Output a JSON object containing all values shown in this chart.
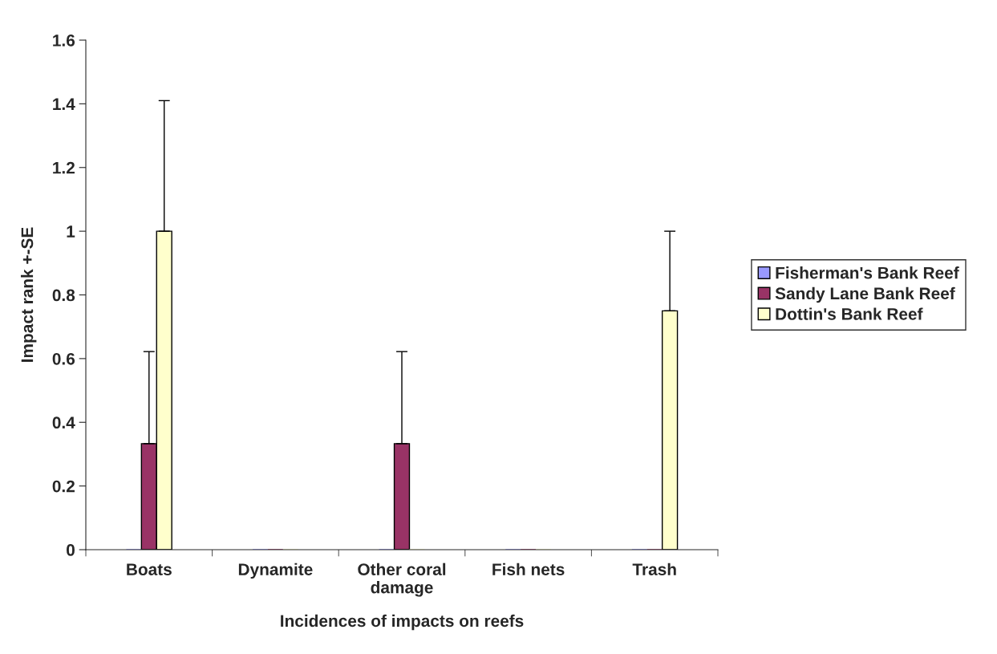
{
  "chart_data": {
    "type": "bar",
    "xlabel": "Incidences of impacts on reefs",
    "ylabel": "Impact rank +-SE",
    "categories": [
      "Boats",
      "Dynamite",
      "Other coral\ndamage",
      "Fish nets",
      "Trash"
    ],
    "series": [
      {
        "name": "Fisherman's Bank Reef",
        "color": "#9999ff",
        "values": [
          0,
          0,
          0,
          0,
          0
        ]
      },
      {
        "name": "Sandy Lane Bank Reef",
        "color": "#993366",
        "values": [
          0.333,
          0,
          0.333,
          0,
          0
        ],
        "errors": [
          [
            0.333,
            0.622
          ],
          null,
          [
            0.333,
            0.622
          ],
          null,
          null
        ]
      },
      {
        "name": "Dottin's Bank Reef",
        "color": "#ffffcc",
        "values": [
          1,
          0,
          0,
          0,
          0.75
        ],
        "errors": [
          [
            1,
            1.41
          ],
          null,
          null,
          null,
          [
            0.75,
            1
          ]
        ]
      }
    ],
    "ylim": [
      0,
      1.6
    ],
    "yticks": [
      0,
      0.2,
      0.4,
      0.6,
      0.8,
      1,
      1.2,
      1.4,
      1.6
    ],
    "grid": false,
    "legend": "right"
  }
}
